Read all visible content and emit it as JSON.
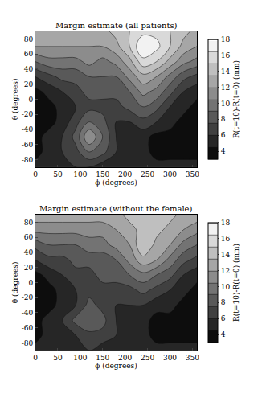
{
  "chart_data": [
    {
      "type": "contour",
      "title": "Margin estimate (all patients)",
      "x_label": "ϕ (degrees)",
      "y_label": "θ (degrees)",
      "z_label": "R(t=10)-R(t=0) (mm)",
      "x": [
        0,
        30,
        60,
        90,
        120,
        150,
        180,
        210,
        240,
        270,
        300,
        330,
        360
      ],
      "y": [
        -90,
        -70,
        -50,
        -30,
        -10,
        10,
        30,
        50,
        70,
        90
      ],
      "z": [
        [
          5,
          5,
          5,
          6,
          6,
          5,
          5,
          5,
          5,
          5,
          5,
          5,
          5
        ],
        [
          4,
          5,
          6,
          7,
          9,
          8,
          6,
          5,
          5,
          4,
          4,
          4,
          4
        ],
        [
          4,
          5,
          6,
          8,
          12,
          9,
          6,
          5,
          5,
          4,
          4,
          4,
          4
        ],
        [
          4,
          4,
          5,
          7,
          9,
          8,
          6,
          6,
          7,
          6,
          5,
          4,
          4
        ],
        [
          3,
          4,
          5,
          6,
          7,
          7,
          7,
          8,
          9,
          8,
          6,
          5,
          4
        ],
        [
          4,
          5,
          6,
          7,
          8,
          8,
          8,
          9,
          11,
          10,
          8,
          6,
          5
        ],
        [
          6,
          7,
          8,
          8,
          9,
          9,
          9,
          11,
          13,
          12,
          10,
          8,
          7
        ],
        [
          9,
          10,
          10,
          10,
          11,
          10,
          11,
          13,
          16,
          15,
          13,
          11,
          10
        ],
        [
          12,
          12,
          12,
          12,
          12,
          12,
          13,
          15,
          18,
          17,
          15,
          13,
          12
        ],
        [
          13,
          13,
          13,
          13,
          13,
          13,
          14,
          15,
          16,
          16,
          15,
          14,
          13
        ]
      ],
      "xlim": [
        0,
        360
      ],
      "xticks": [
        0,
        50,
        100,
        150,
        200,
        250,
        300,
        350
      ],
      "ylim": [
        -90,
        90
      ],
      "yticks": [
        -80,
        -60,
        -40,
        -20,
        0,
        20,
        40,
        60,
        80
      ],
      "zlim": [
        3,
        18
      ],
      "zticks": [
        4,
        6,
        8,
        10,
        12,
        14,
        16,
        18
      ]
    },
    {
      "type": "contour",
      "title": "Margin estimate (without the female)",
      "x_label": "ϕ (degrees)",
      "y_label": "θ (degrees)",
      "z_label": "R(t=10)-R(t=0) (mm)",
      "x": [
        0,
        30,
        60,
        90,
        120,
        150,
        180,
        210,
        240,
        270,
        300,
        330,
        360
      ],
      "y": [
        -90,
        -70,
        -50,
        -30,
        -10,
        10,
        30,
        50,
        70,
        90
      ],
      "z": [
        [
          5,
          5,
          5,
          6,
          6,
          5,
          5,
          5,
          5,
          5,
          5,
          5,
          5
        ],
        [
          4,
          5,
          6,
          6,
          7,
          7,
          6,
          5,
          5,
          4,
          4,
          4,
          4
        ],
        [
          4,
          5,
          6,
          8,
          9,
          8,
          6,
          5,
          5,
          4,
          4,
          4,
          4
        ],
        [
          4,
          4,
          5,
          6,
          8,
          7,
          6,
          6,
          6,
          5,
          5,
          4,
          4
        ],
        [
          3,
          4,
          5,
          6,
          7,
          7,
          7,
          7,
          8,
          7,
          6,
          5,
          4
        ],
        [
          4,
          5,
          6,
          7,
          7,
          8,
          8,
          9,
          10,
          9,
          8,
          6,
          5
        ],
        [
          6,
          7,
          7,
          8,
          8,
          8,
          9,
          11,
          13,
          12,
          10,
          8,
          7
        ],
        [
          8,
          9,
          9,
          9,
          10,
          10,
          11,
          12,
          15,
          13,
          12,
          10,
          9
        ],
        [
          11,
          11,
          11,
          11,
          11,
          11,
          12,
          13,
          14,
          14,
          13,
          12,
          11
        ],
        [
          13,
          13,
          13,
          13,
          13,
          13,
          13,
          14,
          14,
          14,
          14,
          13,
          13
        ]
      ],
      "xlim": [
        0,
        360
      ],
      "xticks": [
        0,
        50,
        100,
        150,
        200,
        250,
        300,
        350
      ],
      "ylim": [
        -90,
        90
      ],
      "yticks": [
        -80,
        -60,
        -40,
        -20,
        0,
        20,
        40,
        60,
        80
      ],
      "zlim": [
        3,
        18
      ],
      "zticks": [
        4,
        6,
        8,
        10,
        12,
        14,
        16,
        18
      ]
    }
  ]
}
